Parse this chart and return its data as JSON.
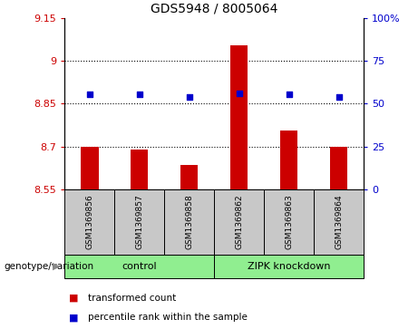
{
  "title": "GDS5948 / 8005064",
  "samples": [
    "GSM1369856",
    "GSM1369857",
    "GSM1369858",
    "GSM1369862",
    "GSM1369863",
    "GSM1369864"
  ],
  "bar_values": [
    8.7,
    8.69,
    8.635,
    9.055,
    8.755,
    8.7
  ],
  "scatter_values": [
    8.882,
    8.882,
    8.874,
    8.885,
    8.882,
    8.874
  ],
  "bar_bottom": 8.55,
  "ylim_left": [
    8.55,
    9.15
  ],
  "ylim_right": [
    0,
    100
  ],
  "yticks_left": [
    8.55,
    8.7,
    8.85,
    9.0,
    9.15
  ],
  "yticks_right": [
    0,
    25,
    50,
    75,
    100
  ],
  "ytick_labels_left": [
    "8.55",
    "8.7",
    "8.85",
    "9",
    "9.15"
  ],
  "ytick_labels_right": [
    "0",
    "25",
    "50",
    "75",
    "100%"
  ],
  "hlines": [
    9.0,
    8.85,
    8.7
  ],
  "group_box_color": "#C8C8C8",
  "group_colors": [
    "#90EE90",
    "#90EE90"
  ],
  "group_ranges": [
    [
      0,
      2
    ],
    [
      3,
      5
    ]
  ],
  "group_labels": [
    "control",
    "ZIPK knockdown"
  ],
  "bar_color": "#CC0000",
  "scatter_color": "#0000CC",
  "legend_label_bar": "transformed count",
  "legend_label_scatter": "percentile rank within the sample",
  "genotype_label": "genotype/variation",
  "axis_color_left": "#CC0000",
  "axis_color_right": "#0000CC",
  "title_fontsize": 10,
  "tick_fontsize": 8,
  "sample_fontsize": 6.5,
  "group_fontsize": 8,
  "legend_fontsize": 7.5
}
